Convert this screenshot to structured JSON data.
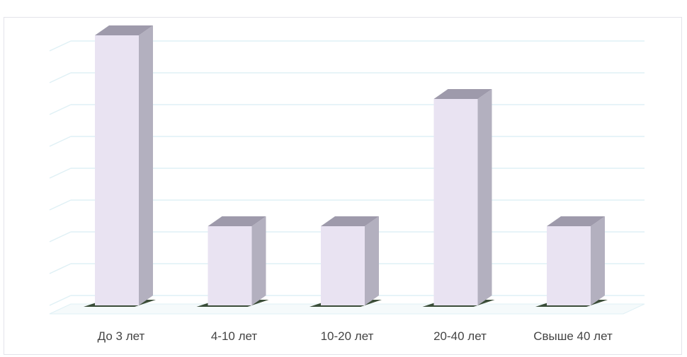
{
  "chart_data": {
    "type": "bar",
    "title": "",
    "categories": [
      "До 3 лет",
      "4-10 лет",
      "10-20 лет",
      "20-40 лет",
      "Свыше 40 лет"
    ],
    "values": [
      8,
      2,
      2,
      6,
      2
    ],
    "ylim": [
      0,
      8
    ],
    "grid": true,
    "legend": "none",
    "three_d": true,
    "colors": {
      "bar_front": "#e9e3f2",
      "bar_side": "#b3b0bf",
      "bar_top": "#9e9aab",
      "shadow": "#263a22",
      "grid": "#dff0f5",
      "label": "#444444"
    }
  }
}
